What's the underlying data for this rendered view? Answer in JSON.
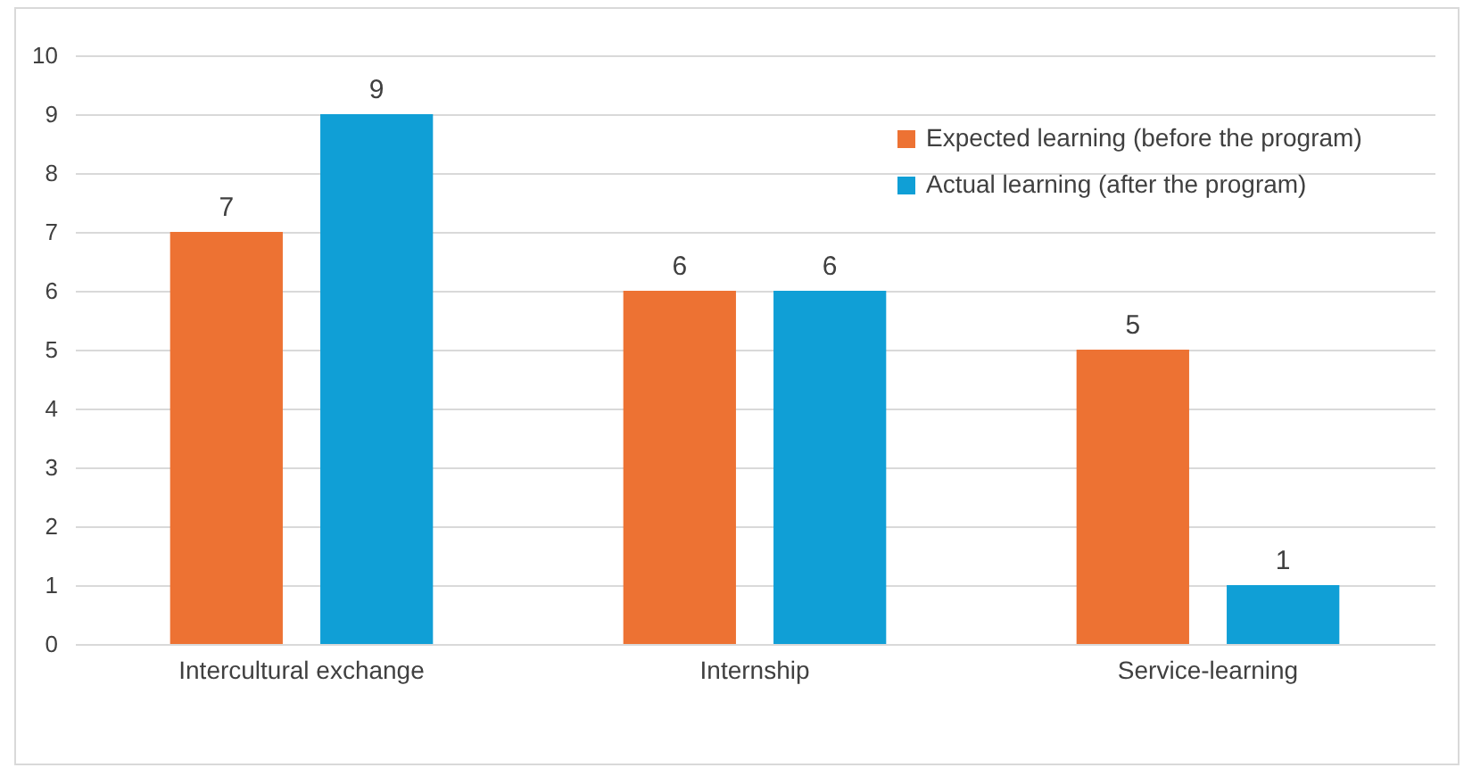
{
  "chart_data": {
    "type": "bar",
    "categories": [
      "Intercultural exchange",
      "Internship",
      "Service-learning"
    ],
    "series": [
      {
        "name": "Expected learning (before the program)",
        "color": "#ed7233",
        "values": [
          7,
          6,
          5
        ]
      },
      {
        "name": "Actual learning (after the program)",
        "color": "#109fd6",
        "values": [
          9,
          6,
          1
        ]
      }
    ],
    "ylim": [
      0,
      10
    ],
    "yticks": [
      0,
      1,
      2,
      3,
      4,
      5,
      6,
      7,
      8,
      9,
      10
    ],
    "grid": "y",
    "legend": "top right",
    "data_labels": true
  }
}
